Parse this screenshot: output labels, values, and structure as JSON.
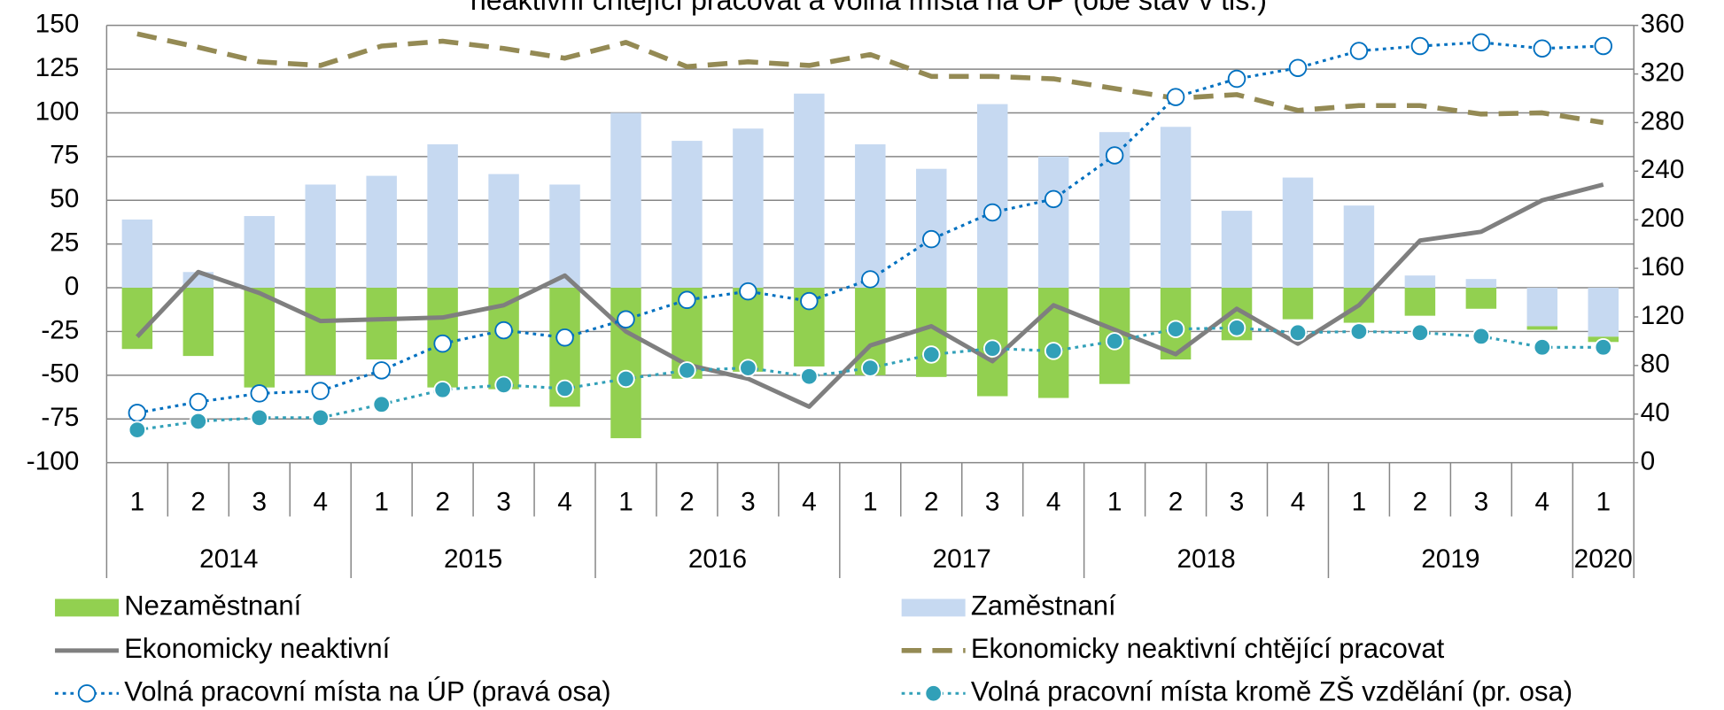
{
  "chart_data": {
    "type": "bar",
    "title": "neaktivní chtějící pracovat a volná místa na ÚP  (obě stav v tis.)",
    "categories": [
      "1",
      "2",
      "3",
      "4",
      "1",
      "2",
      "3",
      "4",
      "1",
      "2",
      "3",
      "4",
      "1",
      "2",
      "3",
      "4",
      "1",
      "2",
      "3",
      "4",
      "1",
      "2",
      "3",
      "4",
      "1"
    ],
    "years": [
      "2014",
      "2015",
      "2016",
      "2017",
      "2018",
      "2019",
      "2020"
    ],
    "ylim": [
      -100,
      150
    ],
    "yticks": [
      -100,
      -75,
      -50,
      -25,
      0,
      25,
      50,
      75,
      100,
      125,
      150
    ],
    "y2lim": [
      0,
      360
    ],
    "y2ticks": [
      0,
      40,
      80,
      120,
      160,
      200,
      240,
      280,
      320,
      360
    ],
    "grid": true,
    "stacked": true,
    "series": [
      {
        "name": "Nezaměstnaní",
        "type": "bar",
        "color": "#92d050",
        "values": [
          -35,
          -39,
          -57,
          -50,
          -41,
          -57,
          -58,
          -68,
          -86,
          -52,
          -48,
          -45,
          -50,
          -51,
          -62,
          -63,
          -55,
          -41,
          -30,
          -18,
          -20,
          -16,
          -12,
          -2,
          -3
        ]
      },
      {
        "name": "Zaměstnaní",
        "type": "bar",
        "color": "#c6d9f1",
        "values": [
          39,
          9,
          41,
          59,
          64,
          82,
          65,
          59,
          100,
          84,
          91,
          111,
          82,
          68,
          105,
          75,
          89,
          92,
          44,
          63,
          47,
          7,
          5,
          -22,
          -28
        ]
      },
      {
        "name": "Ekonomicky neaktivní",
        "type": "line",
        "color": "#7f7f7f",
        "dash": "solid",
        "values": [
          -28,
          9,
          -3,
          -19,
          -18,
          -17,
          -10,
          7,
          -25,
          -44,
          -52,
          -68,
          -33,
          -22,
          -42,
          -10,
          -24,
          -38,
          -12,
          -32,
          -10,
          27,
          32,
          50,
          59
        ]
      },
      {
        "name": "Ekonomicky neaktivní chtějící pracovat",
        "type": "line",
        "color": "#948a54",
        "dash": "dashed",
        "axis": "y2",
        "values": [
          353,
          342,
          330,
          327,
          343,
          347,
          341,
          333,
          346,
          326,
          330,
          327,
          336,
          318,
          318,
          316,
          308,
          300,
          303,
          290,
          294,
          294,
          287,
          288,
          280
        ]
      },
      {
        "name": "Volná pracovní místa na ÚP (pravá osa)",
        "type": "line",
        "color": "#0070c0",
        "dash": "dotted",
        "marker": "open-circle",
        "axis": "y2",
        "values": [
          41,
          50,
          57,
          59,
          76,
          98,
          109,
          103,
          118,
          134,
          141,
          133,
          151,
          184,
          206,
          217,
          253,
          301,
          316,
          325,
          339,
          343,
          346,
          341,
          343
        ]
      },
      {
        "name": "Volná pracovní místa kromě ZŠ vzdělání (pr. osa)",
        "type": "line",
        "color": "#31a0b8",
        "dash": "dotted",
        "marker": "filled-circle",
        "axis": "y2",
        "values": [
          27,
          34,
          37,
          37,
          48,
          60,
          64,
          61,
          69,
          76,
          78,
          71,
          78,
          89,
          94,
          92,
          100,
          110,
          111,
          107,
          108,
          107,
          104,
          95,
          95
        ]
      }
    ],
    "legend": "bottom"
  }
}
